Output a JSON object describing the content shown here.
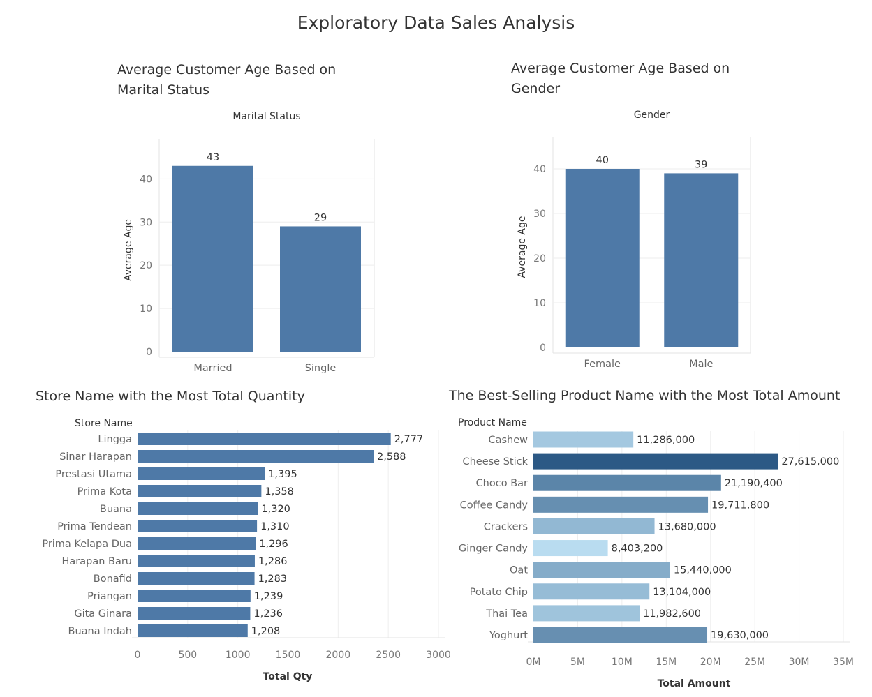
{
  "page_title": "Exploratory Data Sales Analysis",
  "chart_data": [
    {
      "type": "bar",
      "title": "Average Customer Age Based on Marital Status",
      "title_lines": [
        "Average Customer Age Based on",
        "Marital Status"
      ],
      "header": "Marital Status",
      "ylabel": "Average Age",
      "categories": [
        "Married",
        "Single"
      ],
      "values": [
        43,
        29
      ],
      "value_labels": [
        "43",
        "29"
      ],
      "ylim": [
        0,
        47
      ],
      "yticks": [
        "0",
        "10",
        "20",
        "30",
        "40"
      ],
      "bar_color": "#4e79a7"
    },
    {
      "type": "bar",
      "title": "Average Customer Age Based on Gender",
      "title_lines": [
        "Average Customer Age Based on",
        "Gender"
      ],
      "header": "Gender",
      "ylabel": "Average Age",
      "categories": [
        "Female",
        "Male"
      ],
      "values": [
        40,
        39
      ],
      "value_labels": [
        "40",
        "39"
      ],
      "ylim": [
        0,
        45
      ],
      "yticks": [
        "0",
        "10",
        "20",
        "30",
        "40"
      ],
      "bar_color": "#4e79a7"
    },
    {
      "type": "bar",
      "orientation": "horizontal",
      "title": "Store Name with the Most Total Quantity",
      "header": "Store Name",
      "xlabel": "Total Qty",
      "categories": [
        "Lingga",
        "Sinar Harapan",
        "Prestasi Utama",
        "Prima Kota",
        "Buana",
        "Prima Tendean",
        "Prima Kelapa Dua",
        "Harapan Baru",
        "Bonafid",
        "Priangan",
        "Gita Ginara",
        "Buana Indah"
      ],
      "values": [
        2777,
        2588,
        1395,
        1358,
        1320,
        1310,
        1296,
        1286,
        1283,
        1239,
        1236,
        1208
      ],
      "value_labels": [
        "2,777",
        "2,588",
        "1,395",
        "1,358",
        "1,320",
        "1,310",
        "1,296",
        "1,286",
        "1,283",
        "1,239",
        "1,236",
        "1,208"
      ],
      "xlim": [
        0,
        3300
      ],
      "xticks": [
        "0",
        "500",
        "1000",
        "1500",
        "2000",
        "2500",
        "3000"
      ],
      "bar_color": "#4e79a7"
    },
    {
      "type": "bar",
      "orientation": "horizontal",
      "title": "The Best-Selling Product Name with the Most Total Amount",
      "header": "Product Name",
      "xlabel": "Total Amount",
      "categories": [
        "Cashew",
        "Cheese Stick",
        "Choco Bar",
        "Coffee Candy",
        "Crackers",
        "Ginger Candy",
        "Oat",
        "Potato Chip",
        "Thai Tea",
        "Yoghurt"
      ],
      "values": [
        11286000,
        27615000,
        21190400,
        19711800,
        13680000,
        8403200,
        15440000,
        13104000,
        11982600,
        19630000
      ],
      "value_labels": [
        "11,286,000",
        "27,615,000",
        "21,190,400",
        "19,711,800",
        "13,680,000",
        "8,403,200",
        "15,440,000",
        "13,104,000",
        "11,982,600",
        "19,630,000"
      ],
      "xlim": [
        0,
        35000000
      ],
      "xticks": [
        "0M",
        "5M",
        "10M",
        "15M",
        "20M",
        "25M",
        "30M",
        "35M"
      ],
      "color_scale": [
        "#b9dcf0",
        "#2c5985"
      ]
    }
  ]
}
